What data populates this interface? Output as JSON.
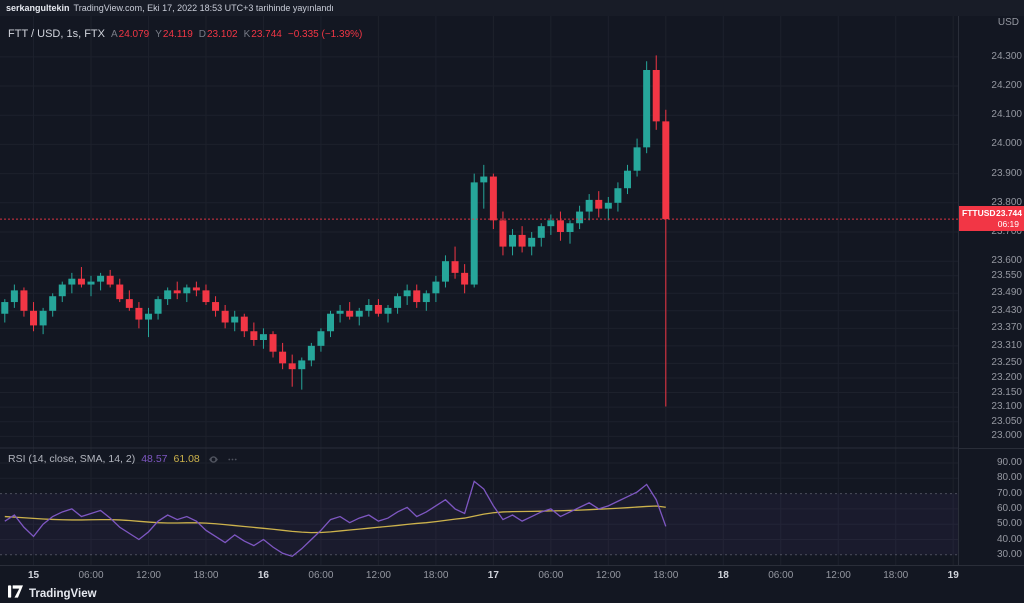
{
  "topbar": {
    "user": "serkangultekin",
    "rest": "TradingView.com, Eki 17, 2022 18:53 UTC+3 tarihinde yayınlandı"
  },
  "legend": {
    "symbol": "FTT / USD, 1s, FTX",
    "ohlc": [
      {
        "label": "A",
        "value": "24.079"
      },
      {
        "label": "Y",
        "value": "24.119"
      },
      {
        "label": "D",
        "value": "23.102"
      },
      {
        "label": "K",
        "value": "23.744"
      }
    ],
    "change": "−0.335 (−1.39%)"
  },
  "rsi_legend": {
    "title": "RSI (14, close, SMA, 14, 2)",
    "rsi_value": "48.57",
    "ma_value": "61.08"
  },
  "price_axis": {
    "currency": "USD",
    "price_label": {
      "symbol": "FTTUSD",
      "price": "23.744",
      "countdown": "06:19"
    }
  },
  "footer": {
    "brand": "TradingView"
  },
  "colors": {
    "up": "#26a69a",
    "down": "#f23645",
    "rsi": "#7e57c2",
    "rsi_ma": "#ccb24c",
    "price_line": "#f23645",
    "grid": "#1d212c",
    "separator": "#2a2e39",
    "band_fill": "rgba(126,87,194,0.07)"
  },
  "chart_data": {
    "type": "candlestick",
    "title": "FTT / USD, 1s, FTX",
    "symbol": "FTT/USD",
    "interval": "1h",
    "exchange": "FTX",
    "ylabel": "USD",
    "price_range": [
      22.96,
      24.44
    ],
    "last_price": 23.744,
    "last_candle_ohlc": {
      "open": 24.079,
      "high": 24.119,
      "low": 23.102,
      "close": 23.744,
      "change": -0.335,
      "change_pct": -1.39
    },
    "price_axis_ticks": [
      "24.300",
      "24.200",
      "24.100",
      "24.000",
      "23.900",
      "23.800",
      "23.700",
      "23.600",
      "23.550",
      "23.490",
      "23.430",
      "23.370",
      "23.310",
      "23.250",
      "23.200",
      "23.150",
      "23.100",
      "23.050",
      "23.000"
    ],
    "rsi_axis_ticks": [
      "90.00",
      "80.00",
      "70.00",
      "60.00",
      "50.00",
      "40.00",
      "30.00"
    ],
    "time_ticks": [
      {
        "text": "15",
        "slot": 3,
        "major": true
      },
      {
        "text": "06:00",
        "slot": 9,
        "major": false
      },
      {
        "text": "12:00",
        "slot": 15,
        "major": false
      },
      {
        "text": "18:00",
        "slot": 21,
        "major": false
      },
      {
        "text": "16",
        "slot": 27,
        "major": true
      },
      {
        "text": "06:00",
        "slot": 33,
        "major": false
      },
      {
        "text": "12:00",
        "slot": 39,
        "major": false
      },
      {
        "text": "18:00",
        "slot": 45,
        "major": false
      },
      {
        "text": "17",
        "slot": 51,
        "major": true
      },
      {
        "text": "06:00",
        "slot": 57,
        "major": false
      },
      {
        "text": "12:00",
        "slot": 63,
        "major": false
      },
      {
        "text": "18:00",
        "slot": 69,
        "major": false
      },
      {
        "text": "18",
        "slot": 75,
        "major": true
      },
      {
        "text": "06:00",
        "slot": 81,
        "major": false
      },
      {
        "text": "12:00",
        "slot": 87,
        "major": false
      },
      {
        "text": "18:00",
        "slot": 93,
        "major": false
      },
      {
        "text": "19",
        "slot": 99,
        "major": true
      }
    ],
    "candles": [
      [
        23.42,
        23.47,
        23.39,
        23.46
      ],
      [
        23.46,
        23.52,
        23.44,
        23.5
      ],
      [
        23.5,
        23.51,
        23.41,
        23.43
      ],
      [
        23.43,
        23.46,
        23.36,
        23.38
      ],
      [
        23.38,
        23.44,
        23.35,
        23.43
      ],
      [
        23.43,
        23.49,
        23.41,
        23.48
      ],
      [
        23.48,
        23.53,
        23.46,
        23.52
      ],
      [
        23.52,
        23.56,
        23.49,
        23.54
      ],
      [
        23.54,
        23.58,
        23.51,
        23.52
      ],
      [
        23.52,
        23.55,
        23.48,
        23.53
      ],
      [
        23.53,
        23.56,
        23.5,
        23.55
      ],
      [
        23.55,
        23.57,
        23.51,
        23.52
      ],
      [
        23.52,
        23.54,
        23.46,
        23.47
      ],
      [
        23.47,
        23.5,
        23.43,
        23.44
      ],
      [
        23.44,
        23.46,
        23.37,
        23.4
      ],
      [
        23.4,
        23.44,
        23.34,
        23.42
      ],
      [
        23.42,
        23.48,
        23.4,
        23.47
      ],
      [
        23.47,
        23.51,
        23.45,
        23.5
      ],
      [
        23.5,
        23.53,
        23.47,
        23.49
      ],
      [
        23.49,
        23.52,
        23.46,
        23.51
      ],
      [
        23.51,
        23.53,
        23.48,
        23.5
      ],
      [
        23.5,
        23.52,
        23.45,
        23.46
      ],
      [
        23.46,
        23.48,
        23.41,
        23.43
      ],
      [
        23.43,
        23.45,
        23.37,
        23.39
      ],
      [
        23.39,
        23.43,
        23.36,
        23.41
      ],
      [
        23.41,
        23.42,
        23.34,
        23.36
      ],
      [
        23.36,
        23.39,
        23.31,
        23.33
      ],
      [
        23.33,
        23.37,
        23.3,
        23.35
      ],
      [
        23.35,
        23.36,
        23.27,
        23.29
      ],
      [
        23.29,
        23.32,
        23.23,
        23.25
      ],
      [
        23.25,
        23.28,
        23.17,
        23.23
      ],
      [
        23.23,
        23.27,
        23.16,
        23.26
      ],
      [
        23.26,
        23.32,
        23.24,
        23.31
      ],
      [
        23.31,
        23.37,
        23.29,
        23.36
      ],
      [
        23.36,
        23.43,
        23.34,
        23.42
      ],
      [
        23.42,
        23.45,
        23.39,
        23.43
      ],
      [
        23.43,
        23.46,
        23.4,
        23.41
      ],
      [
        23.41,
        23.44,
        23.38,
        23.43
      ],
      [
        23.43,
        23.47,
        23.41,
        23.45
      ],
      [
        23.45,
        23.47,
        23.41,
        23.42
      ],
      [
        23.42,
        23.45,
        23.39,
        23.44
      ],
      [
        23.44,
        23.49,
        23.42,
        23.48
      ],
      [
        23.48,
        23.52,
        23.45,
        23.5
      ],
      [
        23.5,
        23.52,
        23.44,
        23.46
      ],
      [
        23.46,
        23.5,
        23.43,
        23.49
      ],
      [
        23.49,
        23.55,
        23.46,
        23.53
      ],
      [
        23.53,
        23.62,
        23.51,
        23.6
      ],
      [
        23.6,
        23.65,
        23.54,
        23.56
      ],
      [
        23.56,
        23.59,
        23.49,
        23.52
      ],
      [
        23.52,
        23.9,
        23.51,
        23.87
      ],
      [
        23.87,
        23.93,
        23.78,
        23.89
      ],
      [
        23.89,
        23.9,
        23.71,
        23.74
      ],
      [
        23.74,
        23.77,
        23.62,
        23.65
      ],
      [
        23.65,
        23.71,
        23.62,
        23.69
      ],
      [
        23.69,
        23.72,
        23.63,
        23.65
      ],
      [
        23.65,
        23.7,
        23.62,
        23.68
      ],
      [
        23.68,
        23.73,
        23.65,
        23.72
      ],
      [
        23.72,
        23.76,
        23.69,
        23.74
      ],
      [
        23.74,
        23.77,
        23.67,
        23.7
      ],
      [
        23.7,
        23.74,
        23.66,
        23.73
      ],
      [
        23.73,
        23.79,
        23.71,
        23.77
      ],
      [
        23.77,
        23.83,
        23.74,
        23.81
      ],
      [
        23.81,
        23.84,
        23.75,
        23.78
      ],
      [
        23.78,
        23.82,
        23.74,
        23.8
      ],
      [
        23.8,
        23.87,
        23.77,
        23.85
      ],
      [
        23.85,
        23.93,
        23.83,
        23.91
      ],
      [
        23.91,
        24.02,
        23.89,
        23.99
      ],
      [
        23.99,
        24.285,
        23.97,
        24.255
      ],
      [
        24.255,
        24.305,
        24.05,
        24.079
      ],
      [
        24.079,
        24.119,
        23.102,
        23.744
      ]
    ],
    "indicators": {
      "rsi": {
        "params": "14, close, SMA, 14, 2",
        "value": 48.57,
        "ma_value": 61.08,
        "bands": [
          70,
          30
        ],
        "range_ticks": [
          90,
          80,
          70,
          60,
          50,
          40,
          30
        ],
        "values": [
          52,
          56,
          48,
          42,
          50,
          55,
          58,
          60,
          55,
          57,
          59,
          54,
          48,
          44,
          40,
          45,
          52,
          56,
          53,
          55,
          52,
          46,
          42,
          38,
          43,
          39,
          36,
          40,
          35,
          31,
          29,
          34,
          40,
          46,
          53,
          55,
          51,
          54,
          56,
          52,
          54,
          58,
          61,
          55,
          58,
          62,
          66,
          60,
          57,
          78,
          73,
          62,
          53,
          56,
          52,
          55,
          58,
          60,
          55,
          58,
          61,
          64,
          60,
          62,
          65,
          68,
          71,
          76,
          66,
          48.57
        ],
        "ma": [
          55,
          54.6,
          54.2,
          53.8,
          53.4,
          53.1,
          52.9,
          52.8,
          52.8,
          52.9,
          53.0,
          53.0,
          52.8,
          52.4,
          51.9,
          51.4,
          51.0,
          50.8,
          50.8,
          50.9,
          50.9,
          50.7,
          50.3,
          49.7,
          49.1,
          48.5,
          47.9,
          47.3,
          46.7,
          46.0,
          45.3,
          44.8,
          44.5,
          44.6,
          45.0,
          45.6,
          46.2,
          46.8,
          47.4,
          48.0,
          48.6,
          49.2,
          49.9,
          50.5,
          51.0,
          51.7,
          52.5,
          53.3,
          54.0,
          55.3,
          56.6,
          57.5,
          58.0,
          58.2,
          58.3,
          58.4,
          58.5,
          58.7,
          58.8,
          59.0,
          59.2,
          59.5,
          59.8,
          60.1,
          60.4,
          60.8,
          61.2,
          61.6,
          61.9,
          61.08
        ]
      }
    }
  }
}
